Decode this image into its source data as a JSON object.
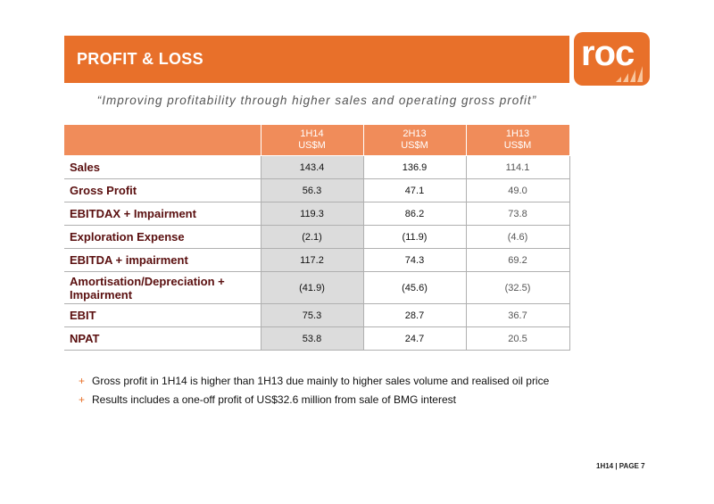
{
  "header": {
    "title": "PROFIT & LOSS"
  },
  "logo": {
    "text": "roc"
  },
  "quote": "“Improving profitability through higher sales and operating gross profit”",
  "table": {
    "columns": [
      {
        "period": "1H14",
        "unit": "US$M"
      },
      {
        "period": "2H13",
        "unit": "US$M"
      },
      {
        "period": "1H13",
        "unit": "US$M"
      }
    ],
    "rows": [
      {
        "label": "Sales",
        "values": [
          "143.4",
          "136.9",
          "114.1"
        ]
      },
      {
        "label": "Gross Profit",
        "values": [
          "56.3",
          "47.1",
          "49.0"
        ]
      },
      {
        "label": "EBITDAX + Impairment",
        "values": [
          "119.3",
          "86.2",
          "73.8"
        ]
      },
      {
        "label": "Exploration Expense",
        "values": [
          "(2.1)",
          "(11.9)",
          "(4.6)"
        ]
      },
      {
        "label": "EBITDA + impairment",
        "values": [
          "117.2",
          "74.3",
          "69.2"
        ]
      },
      {
        "label": "Amortisation/Depreciation + Impairment",
        "values": [
          "(41.9)",
          "(45.6)",
          "(32.5)"
        ]
      },
      {
        "label": "EBIT",
        "values": [
          "75.3",
          "28.7",
          "36.7"
        ]
      },
      {
        "label": "NPAT",
        "values": [
          "53.8",
          "24.7",
          "20.5"
        ]
      }
    ]
  },
  "bullets": [
    "Gross profit in 1H14 is higher than 1H13 due mainly to higher sales volume and realised oil price",
    "Results includes a one-off profit of US$32.6 million from sale of BMG interest"
  ],
  "bullet_marker": "+",
  "footer": "1H14 | PAGE 7"
}
